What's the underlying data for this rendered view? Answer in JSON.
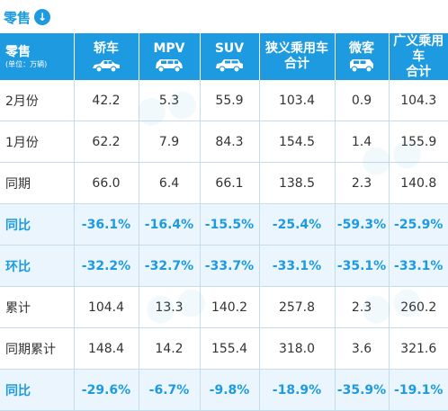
{
  "section_title": "零售",
  "header": {
    "row_label": "零售",
    "unit": "(单位：万辆)",
    "columns": [
      {
        "label": "轿车",
        "icon": "sedan-icon"
      },
      {
        "label": "MPV",
        "icon": "mpv-icon"
      },
      {
        "label": "SUV",
        "icon": "suv-icon"
      },
      {
        "label": "狭义乘用车\n合计",
        "line1": "狭义乘用车",
        "line2": "合计"
      },
      {
        "label": "微客",
        "icon": "minivan-icon"
      },
      {
        "label": "广义乘用车\n合计",
        "line1": "广义乘用车",
        "line2": "合计"
      }
    ]
  },
  "rows": [
    {
      "label": "2月份",
      "cells": [
        "42.2",
        "5.3",
        "55.9",
        "103.4",
        "0.9",
        "104.3"
      ]
    },
    {
      "label": "1月份",
      "cells": [
        "62.2",
        "7.9",
        "84.3",
        "154.5",
        "1.4",
        "155.9"
      ]
    },
    {
      "label": "同期",
      "cells": [
        "66.0",
        "6.4",
        "66.1",
        "138.5",
        "2.3",
        "140.8"
      ]
    },
    {
      "label": "同比",
      "cells": [
        "-36.1%",
        "-16.4%",
        "-15.5%",
        "-25.4%",
        "-59.3%",
        "-25.9%"
      ]
    },
    {
      "label": "环比",
      "cells": [
        "-32.2%",
        "-32.7%",
        "-33.7%",
        "-33.1%",
        "-35.1%",
        "-33.1%"
      ]
    },
    {
      "label": "累计",
      "cells": [
        "104.4",
        "13.3",
        "140.2",
        "257.8",
        "2.3",
        "260.2"
      ]
    },
    {
      "label": "同期累计",
      "cells": [
        "148.4",
        "14.2",
        "155.4",
        "318.0",
        "3.6",
        "321.6"
      ]
    },
    {
      "label": "同比",
      "cells": [
        "-29.6%",
        "-6.7%",
        "-9.8%",
        "-18.9%",
        "-35.9%",
        "-19.1%"
      ]
    }
  ],
  "colors": {
    "accent": "#1e9be0",
    "highlight_row": "#eaf5fd"
  }
}
